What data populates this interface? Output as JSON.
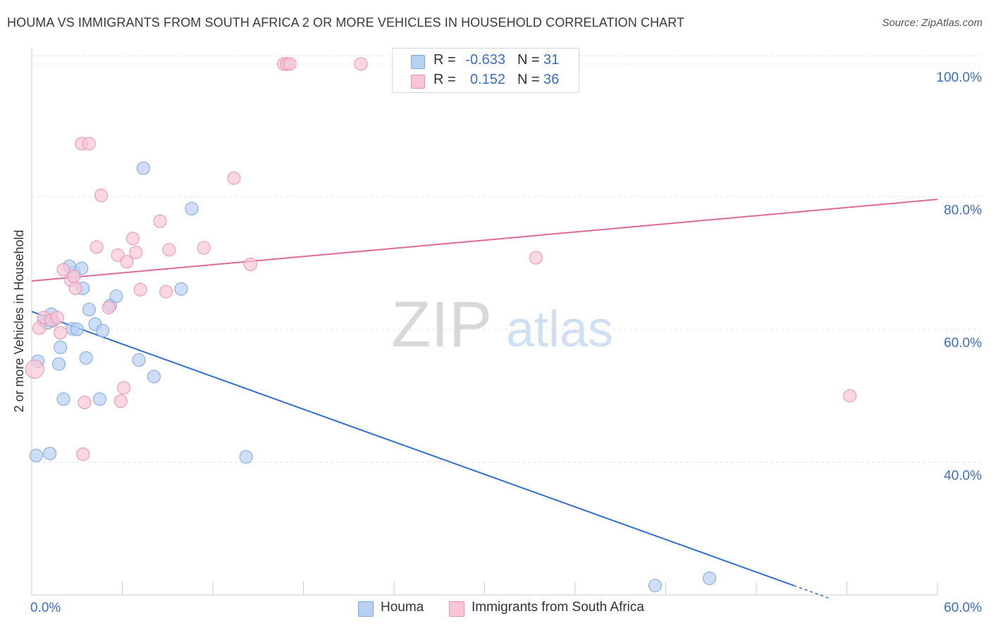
{
  "title": "HOUMA VS IMMIGRANTS FROM SOUTH AFRICA 2 OR MORE VEHICLES IN HOUSEHOLD CORRELATION CHART",
  "source": "Source: ZipAtlas.com",
  "watermark": {
    "zip": "ZIP",
    "atlas": "atlas"
  },
  "colors": {
    "houma_fill": "#b8d0f2",
    "houma_stroke": "#7aa6e0",
    "houma_line": "#2f6fd0",
    "sa_fill": "#f8c6d6",
    "sa_stroke": "#eb8fae",
    "sa_line": "#e0689a",
    "axis_label": "#3a6fc4"
  },
  "stats_legend": {
    "rows": [
      {
        "r_label": "R =",
        "r_value": "-0.633",
        "n_label": "N =",
        "n_value": "31"
      },
      {
        "r_label": "R =",
        "r_value": "0.152",
        "n_label": "N =",
        "n_value": "36"
      }
    ]
  },
  "series_legend": [
    "Houma",
    "Immigrants from South Africa"
  ],
  "chart_data": {
    "type": "scatter",
    "title": "HOUMA VS IMMIGRANTS FROM SOUTH AFRICA 2 OR MORE VEHICLES IN HOUSEHOLD CORRELATION CHART",
    "xlabel": "",
    "ylabel": "2 or more Vehicles in Household",
    "xlim": [
      0,
      60
    ],
    "ylim": [
      20,
      102
    ],
    "x_tick_labels": [
      "0.0%",
      "60.0%"
    ],
    "y_ticks": [
      40,
      60,
      80,
      100
    ],
    "y_tick_labels": [
      "40.0%",
      "60.0%",
      "80.0%",
      "100.0%"
    ],
    "grid": true,
    "legend_position": "top-center",
    "series": [
      {
        "name": "Houma",
        "points": [
          [
            0.3,
            41.0
          ],
          [
            1.2,
            41.3
          ],
          [
            0.4,
            55.2
          ],
          [
            1.8,
            54.8
          ],
          [
            1.9,
            57.3
          ],
          [
            2.1,
            49.5
          ],
          [
            0.8,
            61.3
          ],
          [
            1.4,
            61.3
          ],
          [
            1.3,
            62.3
          ],
          [
            2.8,
            68.6
          ],
          [
            3.3,
            69.2
          ],
          [
            3.4,
            66.2
          ],
          [
            3.8,
            63.0
          ],
          [
            2.7,
            60.1
          ],
          [
            3.0,
            60.0
          ],
          [
            4.2,
            60.8
          ],
          [
            4.7,
            59.8
          ],
          [
            3.6,
            55.7
          ],
          [
            4.5,
            49.5
          ],
          [
            5.2,
            63.6
          ],
          [
            5.6,
            65.0
          ],
          [
            7.1,
            55.4
          ],
          [
            8.1,
            52.9
          ],
          [
            7.4,
            84.3
          ],
          [
            10.6,
            78.2
          ],
          [
            9.9,
            66.1
          ],
          [
            14.2,
            40.8
          ],
          [
            41.3,
            21.4
          ],
          [
            44.9,
            22.5
          ],
          [
            2.5,
            69.5
          ],
          [
            1.0,
            61.0
          ]
        ],
        "trend": {
          "x": [
            0,
            50.5
          ],
          "y": [
            62.7,
            21.4
          ]
        }
      },
      {
        "name": "Immigrants from South Africa",
        "points": [
          [
            0.2,
            54.0
          ],
          [
            0.5,
            60.2
          ],
          [
            0.8,
            61.8
          ],
          [
            1.3,
            61.4
          ],
          [
            1.7,
            61.8
          ],
          [
            1.9,
            59.5
          ],
          [
            2.1,
            69.0
          ],
          [
            2.6,
            67.4
          ],
          [
            2.9,
            66.2
          ],
          [
            3.3,
            88.0
          ],
          [
            3.8,
            88.0
          ],
          [
            4.3,
            72.4
          ],
          [
            4.6,
            80.2
          ],
          [
            5.1,
            63.3
          ],
          [
            5.7,
            71.2
          ],
          [
            6.3,
            70.2
          ],
          [
            6.7,
            73.7
          ],
          [
            6.9,
            71.6
          ],
          [
            7.2,
            66.0
          ],
          [
            8.5,
            76.3
          ],
          [
            9.1,
            72.0
          ],
          [
            8.9,
            65.7
          ],
          [
            11.4,
            72.3
          ],
          [
            13.4,
            82.8
          ],
          [
            14.5,
            69.8
          ],
          [
            16.7,
            100.0
          ],
          [
            16.9,
            100.0
          ],
          [
            17.1,
            100.0
          ],
          [
            21.8,
            100.0
          ],
          [
            33.4,
            70.8
          ],
          [
            54.2,
            50.0
          ],
          [
            6.1,
            51.2
          ],
          [
            5.9,
            49.2
          ],
          [
            3.5,
            49.0
          ],
          [
            3.4,
            41.2
          ],
          [
            2.8,
            68.0
          ]
        ],
        "trend": {
          "x": [
            0,
            60
          ],
          "y": [
            67.3,
            79.6
          ]
        }
      }
    ]
  }
}
